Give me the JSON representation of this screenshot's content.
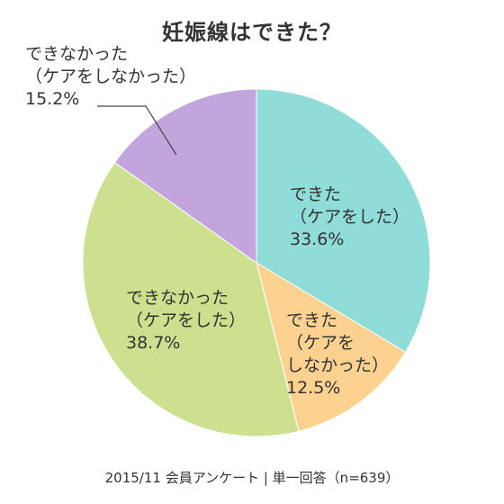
{
  "chart_data": {
    "type": "pie",
    "title": "妊娠線はできた？",
    "start": "12 o'clock",
    "direction": "clockwise",
    "slices": [
      {
        "label_lines": [
          "できた",
          "（ケアをした）",
          "33.6%"
        ],
        "value": 33.6,
        "color": "#8fdcd8"
      },
      {
        "label_lines": [
          "できた",
          "（ケアを",
          "しなかった）",
          "12.5%"
        ],
        "value": 12.5,
        "color": "#fdd18f"
      },
      {
        "label_lines": [
          "できなかった",
          "（ケアをした）",
          "38.7%"
        ],
        "value": 38.7,
        "color": "#cce08f"
      },
      {
        "label_lines": [
          "できなかった",
          "（ケアをしなかった）",
          "15.2%"
        ],
        "value": 15.2,
        "color": "#c3a5de"
      }
    ],
    "slice_border_color": "#ffffff",
    "leader_line_color": "#444444"
  },
  "footer": {
    "note": "2015/11 会員アンケート | 単一回答（n=639）"
  }
}
